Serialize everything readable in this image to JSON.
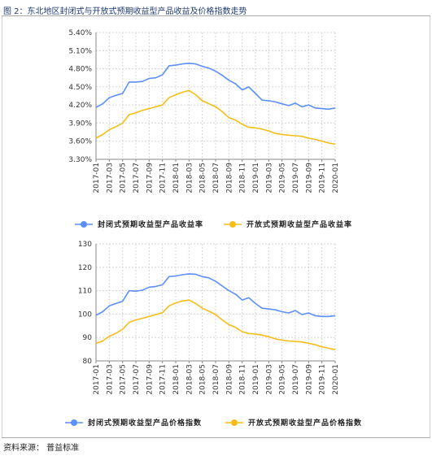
{
  "figure": {
    "title": "图 2：东北地区封闭式与开放式预期收益型产品收益及价格指数走势",
    "source": "资料来源：  普益标准"
  },
  "colors": {
    "series1": "#5b8ff9",
    "series2": "#f6bd16"
  },
  "chart_data": [
    {
      "type": "line",
      "x": [
        "2017-01",
        "2017-02",
        "2017-03",
        "2017-04",
        "2017-05",
        "2017-06",
        "2017-07",
        "2017-08",
        "2017-09",
        "2017-10",
        "2017-11",
        "2017-12",
        "2018-01",
        "2018-02",
        "2018-03",
        "2018-04",
        "2018-05",
        "2018-06",
        "2018-07",
        "2018-08",
        "2018-09",
        "2018-10",
        "2018-11",
        "2018-12",
        "2019-01",
        "2019-02",
        "2019-03",
        "2019-04",
        "2019-05",
        "2019-06",
        "2019-07",
        "2019-08",
        "2019-09",
        "2019-10",
        "2019-11",
        "2019-12",
        "2020-01"
      ],
      "x_ticks": [
        "2017-01",
        "2017-03",
        "2017-05",
        "2017-07",
        "2017-09",
        "2017-11",
        "2018-01",
        "2018-03",
        "2018-05",
        "2018-07",
        "2018-09",
        "2018-11",
        "2019-01",
        "2019-03",
        "2019-05",
        "2019-07",
        "2019-09",
        "2019-11",
        "2020-01"
      ],
      "y_ticks": [
        "5.40%",
        "5.10%",
        "4.80%",
        "4.50%",
        "4.20%",
        "3.90%",
        "3.60%",
        "3.30%"
      ],
      "ylim": [
        3.3,
        5.4
      ],
      "grid": true,
      "legend": "bottom",
      "series": [
        {
          "name": "封闭式预期收益型产品收益率",
          "values": [
            4.16,
            4.22,
            4.32,
            4.36,
            4.39,
            4.58,
            4.58,
            4.59,
            4.64,
            4.65,
            4.7,
            4.85,
            4.86,
            4.88,
            4.89,
            4.88,
            4.84,
            4.81,
            4.76,
            4.69,
            4.61,
            4.55,
            4.45,
            4.5,
            4.39,
            4.28,
            4.27,
            4.25,
            4.22,
            4.19,
            4.23,
            4.17,
            4.2,
            4.15,
            4.14,
            4.13,
            4.15
          ]
        },
        {
          "name": "开放式预期收益型产品收益率",
          "values": [
            3.65,
            3.71,
            3.79,
            3.84,
            3.9,
            4.04,
            4.07,
            4.11,
            4.14,
            4.17,
            4.2,
            4.32,
            4.37,
            4.41,
            4.44,
            4.37,
            4.27,
            4.22,
            4.17,
            4.09,
            3.99,
            3.95,
            3.88,
            3.83,
            3.82,
            3.8,
            3.77,
            3.73,
            3.71,
            3.7,
            3.69,
            3.68,
            3.65,
            3.63,
            3.6,
            3.57,
            3.55
          ]
        }
      ]
    },
    {
      "type": "line",
      "x": [
        "2017-01",
        "2017-02",
        "2017-03",
        "2017-04",
        "2017-05",
        "2017-06",
        "2017-07",
        "2017-08",
        "2017-09",
        "2017-10",
        "2017-11",
        "2017-12",
        "2018-01",
        "2018-02",
        "2018-03",
        "2018-04",
        "2018-05",
        "2018-06",
        "2018-07",
        "2018-08",
        "2018-09",
        "2018-10",
        "2018-11",
        "2018-12",
        "2019-01",
        "2019-02",
        "2019-03",
        "2019-04",
        "2019-05",
        "2019-06",
        "2019-07",
        "2019-08",
        "2019-09",
        "2019-10",
        "2019-11",
        "2019-12",
        "2020-01"
      ],
      "x_ticks": [
        "2017-01",
        "2017-03",
        "2017-05",
        "2017-07",
        "2017-09",
        "2017-11",
        "2018-01",
        "2018-03",
        "2018-05",
        "2018-07",
        "2018-09",
        "2018-11",
        "2019-01",
        "2019-03",
        "2019-05",
        "2019-07",
        "2019-09",
        "2019-11",
        "2020-01"
      ],
      "y_ticks": [
        "130",
        "120",
        "110",
        "100",
        "90",
        "80"
      ],
      "ylim": [
        80,
        130
      ],
      "grid": true,
      "legend": "bottom",
      "series": [
        {
          "name": "封闭式预期收益型产品价格指数",
          "values": [
            99.5,
            101.0,
            103.5,
            104.5,
            105.5,
            110.0,
            109.8,
            110.2,
            111.5,
            111.8,
            112.5,
            116.0,
            116.3,
            116.8,
            117.2,
            117.0,
            116.0,
            115.5,
            114.0,
            112.0,
            110.0,
            108.5,
            106.0,
            107.0,
            104.5,
            102.5,
            102.2,
            101.8,
            101.0,
            100.5,
            101.5,
            99.8,
            100.5,
            99.3,
            99.0,
            99.0,
            99.3
          ]
        },
        {
          "name": "开放式预期收益型产品价格指数",
          "values": [
            87.5,
            88.5,
            90.5,
            91.8,
            93.5,
            96.5,
            97.5,
            98.2,
            99.0,
            99.8,
            100.6,
            103.5,
            104.8,
            105.6,
            106.0,
            104.5,
            102.5,
            101.2,
            99.8,
            97.5,
            95.5,
            94.3,
            92.5,
            91.7,
            91.5,
            91.0,
            90.3,
            89.4,
            88.9,
            88.5,
            88.3,
            88.1,
            87.5,
            86.9,
            86.0,
            85.4,
            84.8
          ]
        }
      ]
    }
  ]
}
